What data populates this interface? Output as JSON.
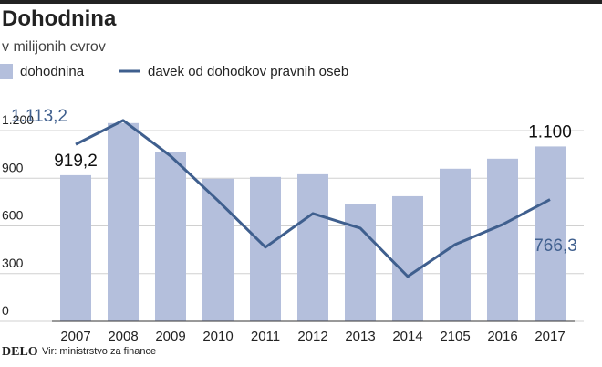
{
  "chart_data": {
    "type": "bar",
    "title": "Dohodnina",
    "subtitle": "v milijonih evrov",
    "categories": [
      "2007",
      "2008",
      "2009",
      "2010",
      "2011",
      "2012",
      "2013",
      "2014",
      "2105",
      "2016",
      "2017"
    ],
    "series": [
      {
        "name": "dohodnina",
        "type": "bar",
        "color": "#b4bfdc",
        "values": [
          919.2,
          1247,
          1063,
          897,
          908,
          925,
          736,
          787,
          960,
          1023,
          1100
        ],
        "value_labels": [
          "919,2",
          null,
          null,
          null,
          null,
          null,
          null,
          null,
          null,
          null,
          "1.100"
        ]
      },
      {
        "name": "davek od dohodkov pravnih oseb",
        "type": "line",
        "color": "#3f5f8e",
        "values": [
          1113.2,
          1264,
          1040,
          759,
          466,
          678,
          586,
          282,
          483,
          609,
          766.3
        ],
        "value_labels": [
          "1.113,2",
          null,
          null,
          null,
          null,
          null,
          null,
          null,
          null,
          null,
          "766,3"
        ]
      }
    ],
    "ylim": [
      0,
      1200
    ],
    "yticks": [
      0,
      300,
      600,
      900,
      {
        "value": 1200,
        "label": "1.200"
      }
    ],
    "grid": true,
    "footer": {
      "logo": "DELO",
      "source": "Vir: ministrstvo za finance"
    }
  }
}
